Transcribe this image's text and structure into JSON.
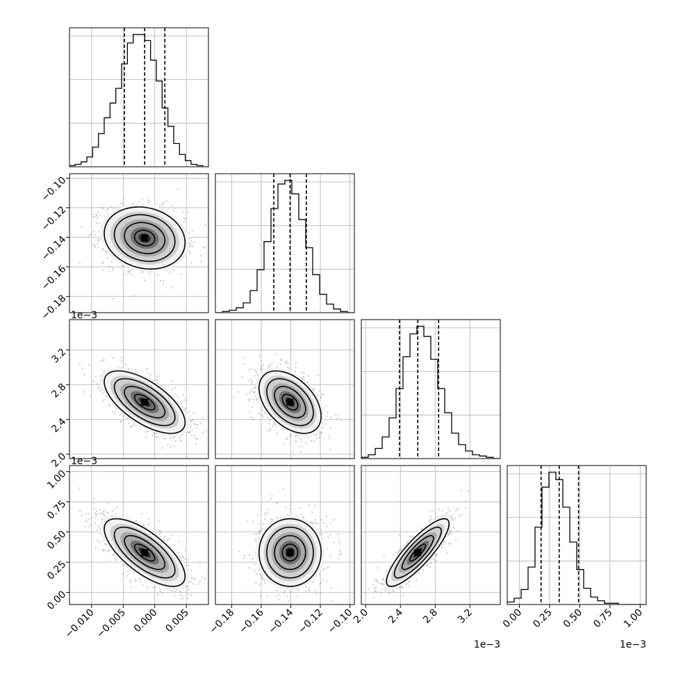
{
  "chart_data": {
    "type": "corner",
    "title": "",
    "colors": {
      "hist": "#000000",
      "grid": "#b0b0b0",
      "scatter": "#9a9a9a",
      "contour": "#000000",
      "frame": "#000000"
    },
    "parameters": [
      {
        "range": [
          -0.0135,
          0.0085
        ],
        "mean": -0.0016,
        "sigma": 0.0032,
        "quantiles": [
          -0.0048,
          -0.0016,
          0.0016
        ],
        "hist_values": [
          1,
          2,
          4,
          8,
          16,
          27,
          40,
          52,
          64,
          84,
          101,
          108,
          108,
          103,
          87,
          70,
          48,
          33,
          19,
          10,
          5,
          2,
          1,
          0
        ],
        "ticks": [
          -0.01,
          -0.005,
          0.0,
          0.005
        ],
        "tick_labels": [
          "−0.010",
          "−0.005",
          "0.000",
          "0.005"
        ]
      },
      {
        "range": [
          -0.191,
          -0.097
        ],
        "mean": -0.1405,
        "sigma": 0.0105,
        "quantiles": [
          -0.1515,
          -0.1405,
          -0.1295
        ],
        "hist_values": [
          0,
          1,
          2,
          4,
          8,
          18,
          35,
          58,
          85,
          105,
          108,
          97,
          76,
          53,
          31,
          15,
          7,
          3,
          1,
          0
        ],
        "ticks": [
          -0.18,
          -0.16,
          -0.14,
          -0.12,
          -0.1
        ],
        "tick_labels": [
          "−0.18",
          "−0.16",
          "−0.14",
          "−0.12",
          "−0.10"
        ],
        "y_tick_labels": [
          "−0.10",
          "−0.12",
          "−0.14",
          "−0.16",
          "−0.18"
        ]
      },
      {
        "range": [
          1.95,
          3.55
        ],
        "mean": 2.6,
        "sigma": 0.18,
        "quantiles": [
          2.39,
          2.6,
          2.84
        ],
        "hist_values": [
          1,
          3,
          8,
          17,
          32,
          55,
          80,
          98,
          104,
          96,
          78,
          55,
          36,
          20,
          11,
          6,
          3,
          2,
          1,
          0
        ],
        "ticks": [
          2.0,
          2.4,
          2.8,
          3.2
        ],
        "tick_labels": [
          "2.0",
          "2.4",
          "2.8",
          "3.2"
        ],
        "sci": "1e−3"
      },
      {
        "range": [
          -0.1,
          1.05
        ],
        "mean": 0.33,
        "sigma": 0.14,
        "quantiles": [
          0.18,
          0.33,
          0.49
        ],
        "hist_values": [
          2,
          5,
          12,
          30,
          62,
          94,
          106,
          100,
          78,
          50,
          28,
          13,
          6,
          3,
          1,
          1,
          0,
          0,
          0,
          0
        ],
        "ticks": [
          0.0,
          0.25,
          0.5,
          0.75,
          1.0
        ],
        "tick_labels": [
          "0.00",
          "0.25",
          "0.50",
          "0.75",
          "1.00"
        ],
        "sci": "1e−3"
      }
    ],
    "correlations": [
      {
        "pair": [
          1,
          0
        ],
        "rho": -0.15
      },
      {
        "pair": [
          2,
          0
        ],
        "rho": -0.65
      },
      {
        "pair": [
          2,
          1
        ],
        "rho": -0.45
      },
      {
        "pair": [
          3,
          0
        ],
        "rho": -0.7
      },
      {
        "pair": [
          3,
          1
        ],
        "rho": 0.0
      },
      {
        "pair": [
          3,
          2
        ],
        "rho": 0.85
      }
    ]
  }
}
